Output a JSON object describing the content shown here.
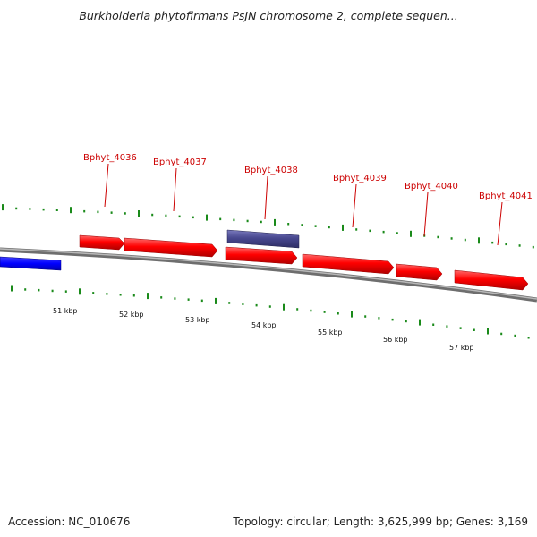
{
  "title": "Burkholderia phytofirmans PsJN chromosome 2, complete sequen...",
  "footer": {
    "accession": "Accession: NC_010676",
    "summary": "Topology: circular; Length: 3,625,999 bp; Genes: 3,169"
  },
  "colors": {
    "gene_forward": "#ff0000",
    "gene_highlight": "#48488f",
    "gene_other": "#0000ff",
    "backbone": "#808080",
    "ticks": "#1a8a1a",
    "label": "#cc0000"
  },
  "scale_labels": [
    "51 kbp",
    "52 kbp",
    "53 kbp",
    "54 kbp",
    "55 kbp",
    "56 kbp",
    "57 kbp"
  ],
  "genes": [
    {
      "name": "Bphyt_4036",
      "color": "forward"
    },
    {
      "name": "Bphyt_4037",
      "color": "forward"
    },
    {
      "name": "Bphyt_4038",
      "color": "highlight"
    },
    {
      "name": "Bphyt_4039",
      "color": "forward"
    },
    {
      "name": "Bphyt_4040",
      "color": "forward"
    },
    {
      "name": "Bphyt_4041",
      "color": "forward"
    }
  ]
}
